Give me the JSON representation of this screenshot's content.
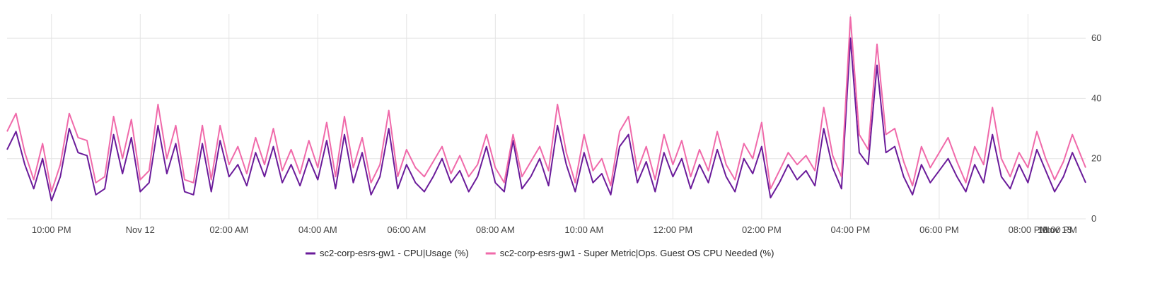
{
  "chart_data": {
    "type": "line",
    "title": "",
    "xlabel": "",
    "ylabel": "",
    "ylim": [
      0,
      68
    ],
    "yticks": [
      0,
      20,
      40,
      60
    ],
    "y_axis_side": "right",
    "grid": true,
    "legend_position": "bottom-center",
    "x_start": 21.0,
    "x_end": 45.3,
    "x_ticks": [
      {
        "value": 22.0,
        "label": "10:00 PM"
      },
      {
        "value": 24.0,
        "label": "Nov 12"
      },
      {
        "value": 26.0,
        "label": "02:00 AM"
      },
      {
        "value": 28.0,
        "label": "04:00 AM"
      },
      {
        "value": 30.0,
        "label": "06:00 AM"
      },
      {
        "value": 32.0,
        "label": "08:00 AM"
      },
      {
        "value": 34.0,
        "label": "10:00 AM"
      },
      {
        "value": 36.0,
        "label": "12:00 PM"
      },
      {
        "value": 38.0,
        "label": "02:00 PM"
      },
      {
        "value": 40.0,
        "label": "04:00 PM"
      },
      {
        "value": 42.0,
        "label": "06:00 PM"
      },
      {
        "value": 44.0,
        "label": "08:00 PM"
      },
      {
        "value": 46.0,
        "label": "10:00 PM"
      },
      {
        "value": 48.0,
        "label": "Nov 13"
      }
    ],
    "series": [
      {
        "name": "sc2-corp-esrs-gw1 - CPU|Usage (%)",
        "color": "#6a1b9a",
        "points": [
          [
            21.0,
            23
          ],
          [
            21.2,
            29
          ],
          [
            21.4,
            18
          ],
          [
            21.6,
            10
          ],
          [
            21.8,
            20
          ],
          [
            22.0,
            6
          ],
          [
            22.2,
            14
          ],
          [
            22.4,
            30
          ],
          [
            22.6,
            22
          ],
          [
            22.8,
            21
          ],
          [
            23.0,
            8
          ],
          [
            23.2,
            10
          ],
          [
            23.4,
            28
          ],
          [
            23.6,
            15
          ],
          [
            23.8,
            27
          ],
          [
            24.0,
            9
          ],
          [
            24.2,
            12
          ],
          [
            24.4,
            31
          ],
          [
            24.6,
            15
          ],
          [
            24.8,
            25
          ],
          [
            25.0,
            9
          ],
          [
            25.2,
            8
          ],
          [
            25.4,
            25
          ],
          [
            25.6,
            9
          ],
          [
            25.8,
            26
          ],
          [
            26.0,
            14
          ],
          [
            26.2,
            18
          ],
          [
            26.4,
            11
          ],
          [
            26.6,
            22
          ],
          [
            26.8,
            14
          ],
          [
            27.0,
            24
          ],
          [
            27.2,
            12
          ],
          [
            27.4,
            18
          ],
          [
            27.6,
            11
          ],
          [
            27.8,
            20
          ],
          [
            28.0,
            13
          ],
          [
            28.2,
            26
          ],
          [
            28.4,
            10
          ],
          [
            28.6,
            28
          ],
          [
            28.8,
            12
          ],
          [
            29.0,
            22
          ],
          [
            29.2,
            8
          ],
          [
            29.4,
            14
          ],
          [
            29.6,
            30
          ],
          [
            29.8,
            10
          ],
          [
            30.0,
            18
          ],
          [
            30.2,
            12
          ],
          [
            30.4,
            9
          ],
          [
            30.6,
            14
          ],
          [
            30.8,
            20
          ],
          [
            31.0,
            12
          ],
          [
            31.2,
            16
          ],
          [
            31.4,
            9
          ],
          [
            31.6,
            14
          ],
          [
            31.8,
            24
          ],
          [
            32.0,
            12
          ],
          [
            32.2,
            9
          ],
          [
            32.4,
            26
          ],
          [
            32.6,
            10
          ],
          [
            32.8,
            14
          ],
          [
            33.0,
            20
          ],
          [
            33.2,
            11
          ],
          [
            33.4,
            31
          ],
          [
            33.6,
            18
          ],
          [
            33.8,
            9
          ],
          [
            34.0,
            22
          ],
          [
            34.2,
            12
          ],
          [
            34.4,
            15
          ],
          [
            34.6,
            8
          ],
          [
            34.8,
            24
          ],
          [
            35.0,
            28
          ],
          [
            35.2,
            12
          ],
          [
            35.4,
            19
          ],
          [
            35.6,
            9
          ],
          [
            35.8,
            22
          ],
          [
            36.0,
            14
          ],
          [
            36.2,
            20
          ],
          [
            36.4,
            10
          ],
          [
            36.6,
            18
          ],
          [
            36.8,
            12
          ],
          [
            37.0,
            23
          ],
          [
            37.2,
            14
          ],
          [
            37.4,
            9
          ],
          [
            37.6,
            20
          ],
          [
            37.8,
            15
          ],
          [
            38.0,
            24
          ],
          [
            38.2,
            7
          ],
          [
            38.4,
            12
          ],
          [
            38.6,
            18
          ],
          [
            38.8,
            13
          ],
          [
            39.0,
            16
          ],
          [
            39.2,
            11
          ],
          [
            39.4,
            30
          ],
          [
            39.6,
            17
          ],
          [
            39.8,
            10
          ],
          [
            40.0,
            60
          ],
          [
            40.2,
            22
          ],
          [
            40.4,
            18
          ],
          [
            40.6,
            51
          ],
          [
            40.8,
            22
          ],
          [
            41.0,
            24
          ],
          [
            41.2,
            14
          ],
          [
            41.4,
            8
          ],
          [
            41.6,
            18
          ],
          [
            41.8,
            12
          ],
          [
            42.0,
            16
          ],
          [
            42.2,
            20
          ],
          [
            42.4,
            14
          ],
          [
            42.6,
            9
          ],
          [
            42.8,
            18
          ],
          [
            43.0,
            12
          ],
          [
            43.2,
            28
          ],
          [
            43.4,
            14
          ],
          [
            43.6,
            10
          ],
          [
            43.8,
            18
          ],
          [
            44.0,
            12
          ],
          [
            44.2,
            23
          ],
          [
            44.4,
            16
          ],
          [
            44.6,
            9
          ],
          [
            44.8,
            14
          ],
          [
            45.0,
            22
          ],
          [
            45.3,
            12
          ]
        ]
      },
      {
        "name": "sc2-corp-esrs-gw1 - Super Metric|Ops. Guest OS CPU Needed (%)",
        "color": "#f06aaa",
        "points": [
          [
            21.0,
            29
          ],
          [
            21.2,
            35
          ],
          [
            21.4,
            22
          ],
          [
            21.6,
            13
          ],
          [
            21.8,
            25
          ],
          [
            22.0,
            9
          ],
          [
            22.2,
            18
          ],
          [
            22.4,
            35
          ],
          [
            22.6,
            27
          ],
          [
            22.8,
            26
          ],
          [
            23.0,
            12
          ],
          [
            23.2,
            14
          ],
          [
            23.4,
            34
          ],
          [
            23.6,
            20
          ],
          [
            23.8,
            33
          ],
          [
            24.0,
            13
          ],
          [
            24.2,
            16
          ],
          [
            24.4,
            38
          ],
          [
            24.6,
            20
          ],
          [
            24.8,
            31
          ],
          [
            25.0,
            13
          ],
          [
            25.2,
            12
          ],
          [
            25.4,
            31
          ],
          [
            25.6,
            13
          ],
          [
            25.8,
            31
          ],
          [
            26.0,
            18
          ],
          [
            26.2,
            24
          ],
          [
            26.4,
            15
          ],
          [
            26.6,
            27
          ],
          [
            26.8,
            18
          ],
          [
            27.0,
            30
          ],
          [
            27.2,
            16
          ],
          [
            27.4,
            23
          ],
          [
            27.6,
            15
          ],
          [
            27.8,
            26
          ],
          [
            28.0,
            17
          ],
          [
            28.2,
            32
          ],
          [
            28.4,
            14
          ],
          [
            28.6,
            34
          ],
          [
            28.8,
            17
          ],
          [
            29.0,
            27
          ],
          [
            29.2,
            12
          ],
          [
            29.4,
            18
          ],
          [
            29.6,
            36
          ],
          [
            29.8,
            14
          ],
          [
            30.0,
            23
          ],
          [
            30.2,
            17
          ],
          [
            30.4,
            14
          ],
          [
            30.6,
            19
          ],
          [
            30.8,
            24
          ],
          [
            31.0,
            15
          ],
          [
            31.2,
            21
          ],
          [
            31.4,
            14
          ],
          [
            31.6,
            18
          ],
          [
            31.8,
            28
          ],
          [
            32.0,
            17
          ],
          [
            32.2,
            12
          ],
          [
            32.4,
            28
          ],
          [
            32.6,
            14
          ],
          [
            32.8,
            19
          ],
          [
            33.0,
            24
          ],
          [
            33.2,
            16
          ],
          [
            33.4,
            38
          ],
          [
            33.6,
            22
          ],
          [
            33.8,
            12
          ],
          [
            34.0,
            28
          ],
          [
            34.2,
            16
          ],
          [
            34.4,
            20
          ],
          [
            34.6,
            11
          ],
          [
            34.8,
            29
          ],
          [
            35.0,
            34
          ],
          [
            35.2,
            16
          ],
          [
            35.4,
            24
          ],
          [
            35.6,
            13
          ],
          [
            35.8,
            28
          ],
          [
            36.0,
            18
          ],
          [
            36.2,
            26
          ],
          [
            36.4,
            14
          ],
          [
            36.6,
            23
          ],
          [
            36.8,
            16
          ],
          [
            37.0,
            29
          ],
          [
            37.2,
            18
          ],
          [
            37.4,
            13
          ],
          [
            37.6,
            25
          ],
          [
            37.8,
            20
          ],
          [
            38.0,
            32
          ],
          [
            38.2,
            10
          ],
          [
            38.4,
            16
          ],
          [
            38.6,
            22
          ],
          [
            38.8,
            18
          ],
          [
            39.0,
            21
          ],
          [
            39.2,
            16
          ],
          [
            39.4,
            37
          ],
          [
            39.6,
            21
          ],
          [
            39.8,
            14
          ],
          [
            40.0,
            67
          ],
          [
            40.2,
            28
          ],
          [
            40.4,
            23
          ],
          [
            40.6,
            58
          ],
          [
            40.8,
            28
          ],
          [
            41.0,
            30
          ],
          [
            41.2,
            19
          ],
          [
            41.4,
            11
          ],
          [
            41.6,
            24
          ],
          [
            41.8,
            17
          ],
          [
            42.0,
            22
          ],
          [
            42.2,
            27
          ],
          [
            42.4,
            19
          ],
          [
            42.6,
            12
          ],
          [
            42.8,
            24
          ],
          [
            43.0,
            18
          ],
          [
            43.2,
            37
          ],
          [
            43.4,
            20
          ],
          [
            43.6,
            14
          ],
          [
            43.8,
            22
          ],
          [
            44.0,
            17
          ],
          [
            44.2,
            29
          ],
          [
            44.4,
            20
          ],
          [
            44.6,
            13
          ],
          [
            44.8,
            19
          ],
          [
            45.0,
            28
          ],
          [
            45.3,
            17
          ]
        ]
      }
    ]
  }
}
